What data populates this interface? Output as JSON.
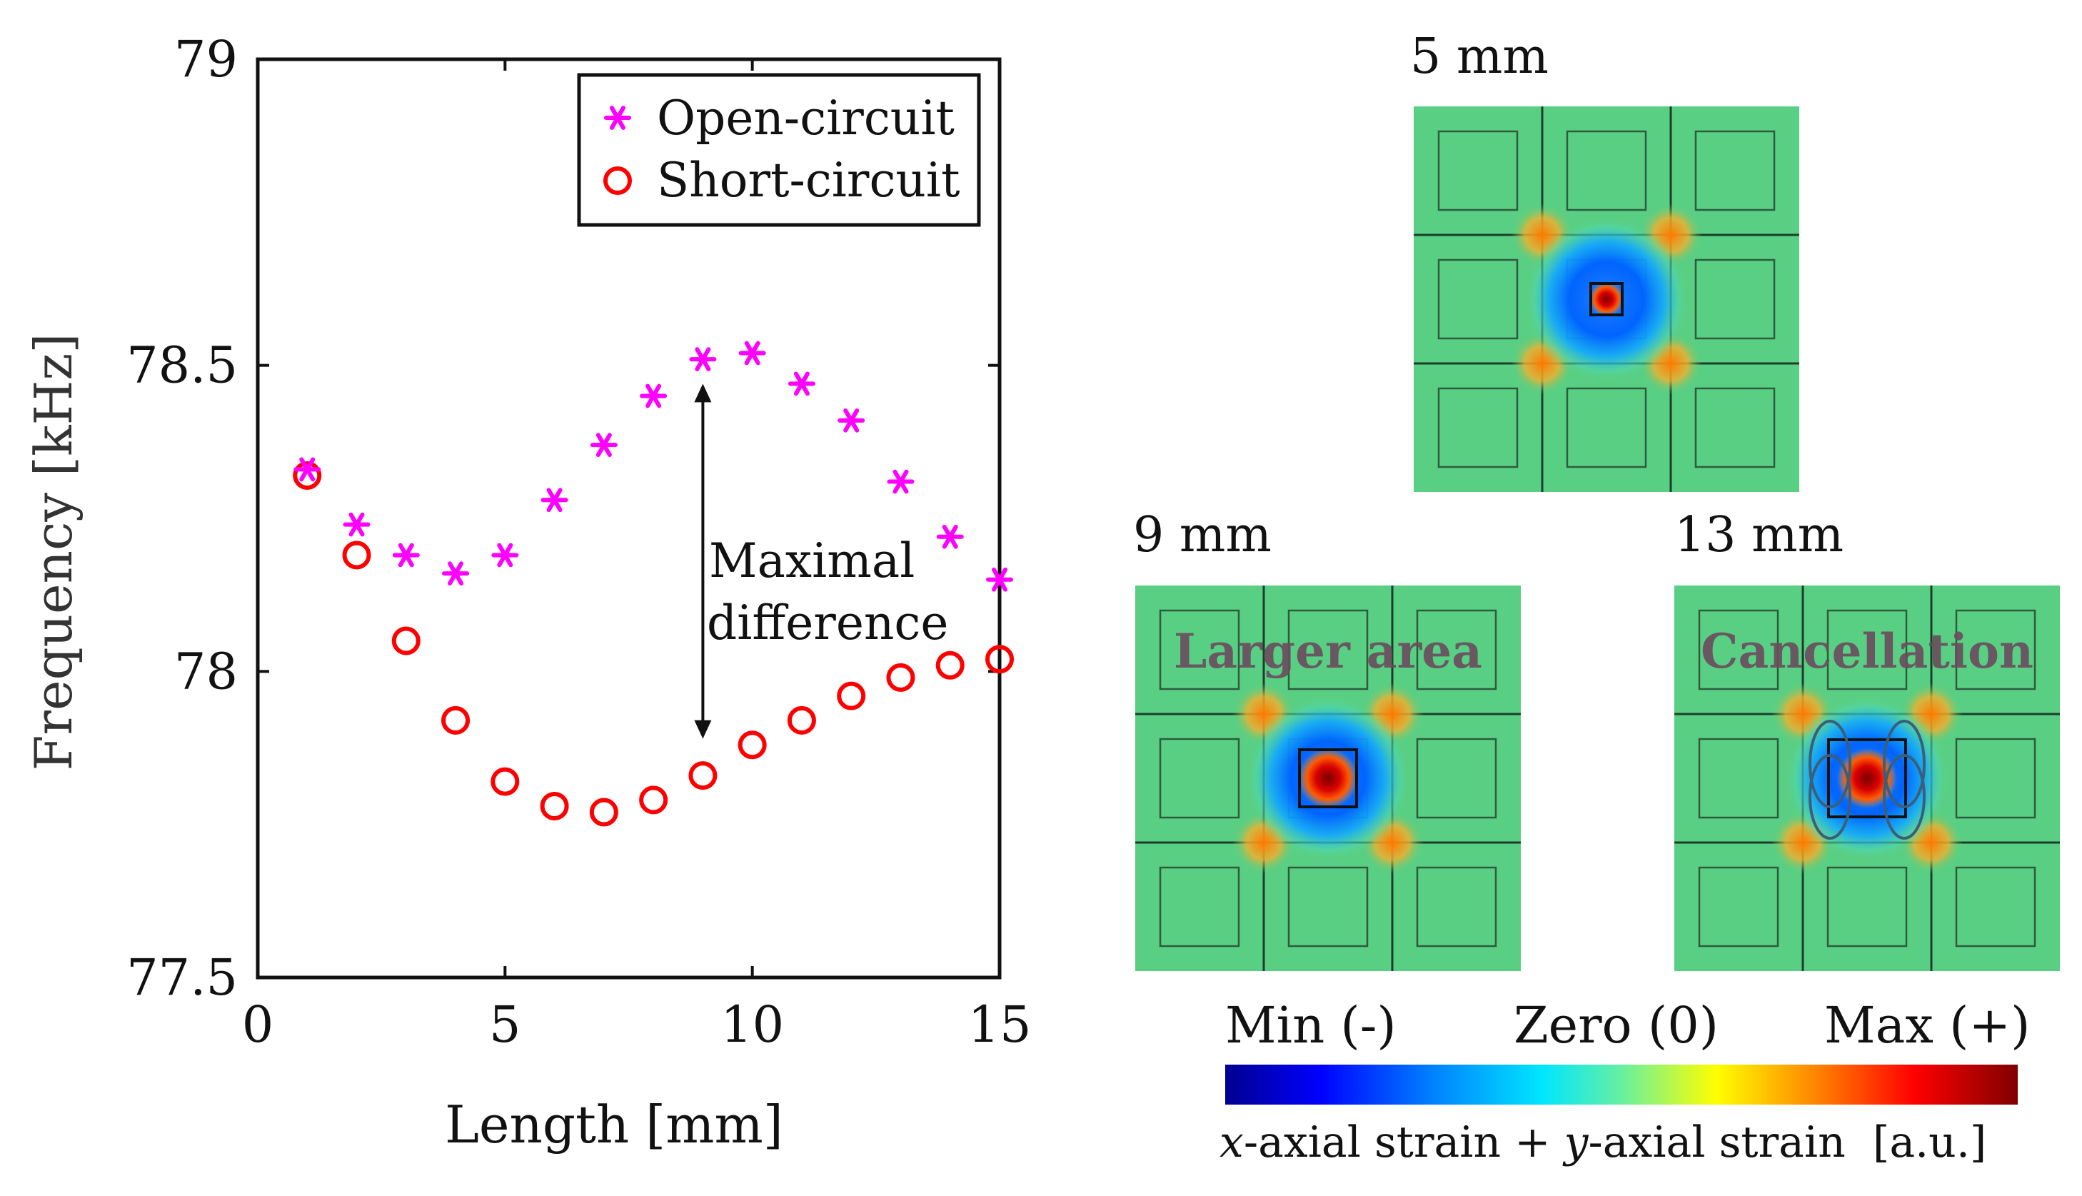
{
  "chart_data": {
    "type": "scatter",
    "xlabel": "Length [mm]",
    "ylabel": "Frequency [kHz]",
    "xlim": [
      0,
      15
    ],
    "ylim": [
      77.5,
      79
    ],
    "xticks": [
      "0",
      "5",
      "10",
      "15"
    ],
    "yticks": [
      "77.5",
      "78",
      "78.5",
      "79"
    ],
    "legend_position": "top-right",
    "series": [
      {
        "name": "Open-circuit",
        "marker": "asterisk",
        "color": "#ff00ff",
        "x": [
          1,
          2,
          3,
          4,
          5,
          6,
          7,
          8,
          9,
          10,
          11,
          12,
          13,
          14,
          15
        ],
        "y": [
          78.33,
          78.24,
          78.19,
          78.16,
          78.19,
          78.28,
          78.37,
          78.45,
          78.51,
          78.52,
          78.47,
          78.41,
          78.31,
          78.22,
          78.15
        ]
      },
      {
        "name": "Short-circuit",
        "marker": "circle",
        "color": "#ff0000",
        "x": [
          1,
          2,
          3,
          4,
          5,
          6,
          7,
          8,
          9,
          10,
          11,
          12,
          13,
          14,
          15
        ],
        "y": [
          78.32,
          78.19,
          78.05,
          77.92,
          77.82,
          77.78,
          77.77,
          77.79,
          77.83,
          77.88,
          77.92,
          77.96,
          77.99,
          78.01,
          78.02
        ]
      }
    ],
    "annotation": {
      "line1": "Maximal",
      "line2": "difference",
      "x": 9,
      "y_from": 78.47,
      "y_to": 77.89
    }
  },
  "maps": {
    "top": {
      "title": "5 mm",
      "note": ""
    },
    "left": {
      "title": "9 mm",
      "note": "Larger area"
    },
    "right": {
      "title": "13 mm",
      "note": "Cancellation"
    }
  },
  "colorbar": {
    "min_label": "Min (-)",
    "zero_label": "Zero (0)",
    "max_label": "Max (+)",
    "strain_x_var": "x",
    "strain_x_text": "-axial strain + ",
    "strain_y_var": "y",
    "strain_y_text": "-axial strain",
    "unit": "[a.u.]"
  }
}
